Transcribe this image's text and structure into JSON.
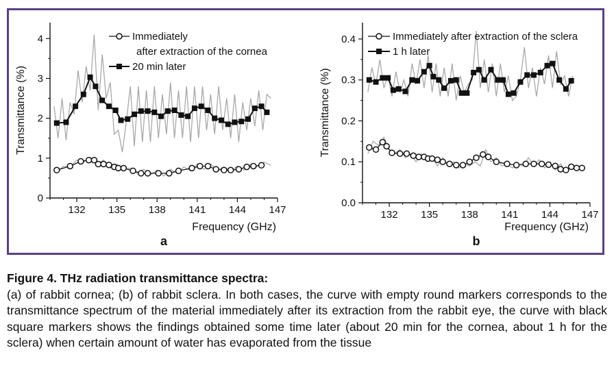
{
  "chart_data": [
    {
      "type": "line",
      "panel_label": "a",
      "xlabel": "Frequency (GHz)",
      "ylabel": "Transmittance (%)",
      "xlim": [
        130,
        147
      ],
      "ylim": [
        0,
        4.4
      ],
      "xticks": [
        132,
        135,
        138,
        141,
        144,
        147
      ],
      "yticks": [
        0,
        1,
        2,
        3,
        4
      ],
      "grid": false,
      "legend_position": "top-right",
      "colors": {
        "axis": "#111111",
        "raw": "#a8a8a8",
        "series": "#111111",
        "frame": "#5b3f86"
      },
      "series": [
        {
          "name": "Immediately\nafter extraction of the cornea",
          "marker": "open-circle",
          "x": [
            130.5,
            131.5,
            132.3,
            132.9,
            133.3,
            133.6,
            134.0,
            134.4,
            134.8,
            135.1,
            135.5,
            136.2,
            136.8,
            137.3,
            138.1,
            138.9,
            139.6,
            140.6,
            141.2,
            141.8,
            142.4,
            143.0,
            143.5,
            144.1,
            144.7,
            145.2,
            145.8
          ],
          "y": [
            0.7,
            0.8,
            0.92,
            0.95,
            0.95,
            0.85,
            0.85,
            0.83,
            0.78,
            0.75,
            0.75,
            0.68,
            0.62,
            0.62,
            0.62,
            0.62,
            0.68,
            0.75,
            0.8,
            0.8,
            0.72,
            0.7,
            0.7,
            0.72,
            0.78,
            0.8,
            0.82
          ]
        },
        {
          "name": "20 min later",
          "marker": "filled-square",
          "x": [
            130.5,
            131.2,
            131.9,
            132.5,
            133.0,
            133.4,
            133.9,
            134.4,
            134.9,
            135.3,
            135.8,
            136.3,
            136.8,
            137.3,
            137.8,
            138.3,
            138.8,
            139.3,
            139.8,
            140.3,
            140.8,
            141.3,
            141.8,
            142.3,
            142.8,
            143.3,
            143.8,
            144.3,
            144.8,
            145.3,
            145.8,
            146.2
          ],
          "y": [
            1.88,
            1.9,
            2.3,
            2.6,
            3.03,
            2.8,
            2.45,
            2.3,
            2.2,
            1.95,
            1.98,
            2.1,
            2.18,
            2.18,
            2.15,
            2.05,
            2.18,
            2.2,
            2.08,
            2.05,
            2.25,
            2.3,
            2.2,
            2.0,
            1.95,
            1.85,
            1.9,
            1.92,
            1.98,
            2.25,
            2.3,
            2.15
          ]
        },
        {
          "name": "",
          "style": "raw-trace",
          "x": [
            130.3,
            130.6,
            130.9,
            131.2,
            131.5,
            131.8,
            132.1,
            132.4,
            132.7,
            133.0,
            133.3,
            133.6,
            133.9,
            134.2,
            134.5,
            134.8,
            135.1,
            135.4,
            135.7,
            136.0,
            136.3,
            136.6,
            136.9,
            137.2,
            137.5,
            137.8,
            138.1,
            138.4,
            138.7,
            139.0,
            139.3,
            139.6,
            139.9,
            140.2,
            140.5,
            140.8,
            141.1,
            141.4,
            141.7,
            142.0,
            142.3,
            142.6,
            142.9,
            143.2,
            143.5,
            143.8,
            144.1,
            144.4,
            144.7,
            145.0,
            145.3,
            145.6,
            145.9,
            146.2,
            146.5
          ],
          "y": [
            2.3,
            1.5,
            2.5,
            1.45,
            2.4,
            2.1,
            3.2,
            2.4,
            3.3,
            2.7,
            4.1,
            2.2,
            3.6,
            2.5,
            2.9,
            1.6,
            1.7,
            1.15,
            1.9,
            2.8,
            1.3,
            2.8,
            1.4,
            2.7,
            1.4,
            2.8,
            1.5,
            2.6,
            1.6,
            2.9,
            1.5,
            2.7,
            1.5,
            2.8,
            1.4,
            2.8,
            1.5,
            2.8,
            1.7,
            2.6,
            1.6,
            2.8,
            1.7,
            2.5,
            1.5,
            2.6,
            1.4,
            2.4,
            1.7,
            2.5,
            1.8,
            2.7,
            1.7,
            2.6,
            2.5
          ]
        },
        {
          "name": "",
          "style": "raw-trace",
          "x": [
            130.5,
            131.0,
            131.5,
            132.0,
            132.5,
            133.0,
            133.5,
            134.0,
            134.5,
            135.0,
            135.5,
            136.0,
            136.5,
            137.0,
            137.5,
            138.0,
            138.5,
            139.0,
            139.5,
            140.0,
            140.5,
            141.0,
            141.5,
            142.0,
            142.5,
            143.0,
            143.5,
            144.0,
            144.5,
            145.0,
            145.5,
            146.0,
            146.5
          ],
          "y": [
            0.62,
            0.8,
            0.78,
            0.95,
            0.9,
            1.02,
            0.85,
            0.95,
            0.75,
            0.85,
            0.7,
            0.75,
            0.62,
            0.72,
            0.58,
            0.7,
            0.55,
            0.72,
            0.62,
            0.78,
            0.68,
            0.85,
            0.72,
            0.85,
            0.7,
            0.78,
            0.68,
            0.8,
            0.7,
            0.85,
            0.8,
            0.9,
            0.82
          ]
        }
      ]
    },
    {
      "type": "line",
      "panel_label": "b",
      "xlabel": "Frequency (GHz)",
      "ylabel": "Transmittance (%)",
      "xlim": [
        130,
        147
      ],
      "ylim": [
        0,
        0.44
      ],
      "xticks": [
        132,
        135,
        138,
        141,
        144,
        147
      ],
      "yticks": [
        0.0,
        0.1,
        0.2,
        0.3,
        0.4
      ],
      "grid": false,
      "legend_position": "top-left",
      "colors": {
        "axis": "#111111",
        "raw": "#a8a8a8",
        "series": "#111111",
        "frame": "#5b3f86"
      },
      "series": [
        {
          "name": "Immediately after extraction of the sclera",
          "marker": "open-circle",
          "x": [
            130.5,
            131.0,
            131.5,
            131.8,
            132.2,
            132.8,
            133.3,
            133.8,
            134.2,
            134.6,
            134.9,
            135.2,
            135.6,
            136.0,
            136.5,
            137.0,
            137.5,
            138.0,
            138.5,
            139.0,
            139.4,
            140.0,
            140.8,
            141.5,
            142.2,
            142.8,
            143.4,
            143.9,
            144.4,
            144.8,
            145.2,
            145.6,
            146.0,
            146.4
          ],
          "y": [
            0.135,
            0.13,
            0.148,
            0.138,
            0.122,
            0.12,
            0.12,
            0.115,
            0.112,
            0.112,
            0.108,
            0.108,
            0.105,
            0.1,
            0.095,
            0.092,
            0.092,
            0.1,
            0.11,
            0.118,
            0.112,
            0.1,
            0.095,
            0.092,
            0.095,
            0.095,
            0.095,
            0.093,
            0.09,
            0.082,
            0.08,
            0.088,
            0.085,
            0.085
          ]
        },
        {
          "name": "1 h later",
          "marker": "filled-square",
          "x": [
            130.5,
            131.0,
            131.5,
            131.9,
            132.3,
            132.7,
            133.2,
            133.7,
            134.1,
            134.6,
            135.0,
            135.3,
            135.7,
            136.1,
            136.6,
            137.0,
            137.4,
            137.8,
            138.3,
            138.7,
            139.1,
            139.6,
            140.1,
            140.5,
            140.9,
            141.3,
            141.8,
            142.3,
            142.8,
            143.3,
            143.8,
            144.2,
            144.7,
            145.2,
            145.6
          ],
          "y": [
            0.3,
            0.295,
            0.305,
            0.305,
            0.275,
            0.278,
            0.272,
            0.3,
            0.298,
            0.32,
            0.335,
            0.308,
            0.3,
            0.28,
            0.298,
            0.3,
            0.268,
            0.268,
            0.318,
            0.325,
            0.3,
            0.325,
            0.3,
            0.3,
            0.265,
            0.268,
            0.295,
            0.312,
            0.312,
            0.318,
            0.335,
            0.34,
            0.3,
            0.278,
            0.298
          ]
        },
        {
          "name": "",
          "style": "raw-trace",
          "x": [
            130.4,
            130.7,
            131.0,
            131.3,
            131.6,
            131.9,
            132.2,
            132.5,
            132.8,
            133.1,
            133.4,
            133.7,
            134.0,
            134.3,
            134.6,
            134.9,
            135.2,
            135.5,
            135.8,
            136.1,
            136.4,
            136.7,
            137.0,
            137.3,
            137.6,
            137.9,
            138.2,
            138.5,
            138.8,
            139.1,
            139.4,
            139.7,
            140.0,
            140.3,
            140.6,
            140.9,
            141.2,
            141.5,
            141.8,
            142.1,
            142.4,
            142.7,
            143.0,
            143.3,
            143.6,
            143.9,
            144.2,
            144.5,
            144.8,
            145.1,
            145.4,
            145.7
          ],
          "y": [
            0.27,
            0.33,
            0.29,
            0.35,
            0.28,
            0.31,
            0.26,
            0.32,
            0.27,
            0.3,
            0.26,
            0.34,
            0.29,
            0.35,
            0.28,
            0.36,
            0.27,
            0.34,
            0.26,
            0.33,
            0.26,
            0.34,
            0.25,
            0.31,
            0.27,
            0.29,
            0.3,
            0.42,
            0.28,
            0.35,
            0.27,
            0.34,
            0.26,
            0.34,
            0.27,
            0.31,
            0.25,
            0.26,
            0.3,
            0.38,
            0.28,
            0.33,
            0.26,
            0.33,
            0.29,
            0.36,
            0.28,
            0.37,
            0.29,
            0.31,
            0.26,
            0.31
          ]
        },
        {
          "name": "",
          "style": "raw-trace",
          "x": [
            130.4,
            130.8,
            131.2,
            131.6,
            132.0,
            132.4,
            132.8,
            133.2,
            133.6,
            134.0,
            134.4,
            134.8,
            135.2,
            135.6,
            136.0,
            136.4,
            136.8,
            137.2,
            137.6,
            138.0,
            138.4,
            138.8,
            139.2,
            139.6,
            140.0,
            140.4,
            140.8,
            141.2,
            141.6,
            142.0,
            142.4,
            142.8,
            143.2,
            143.6,
            144.0,
            144.4,
            144.8,
            145.2,
            145.6,
            146.0,
            146.4
          ],
          "y": [
            0.12,
            0.15,
            0.14,
            0.16,
            0.13,
            0.12,
            0.13,
            0.11,
            0.12,
            0.1,
            0.12,
            0.1,
            0.11,
            0.09,
            0.11,
            0.09,
            0.1,
            0.085,
            0.095,
            0.09,
            0.1,
            0.09,
            0.13,
            0.1,
            0.11,
            0.09,
            0.095,
            0.085,
            0.095,
            0.09,
            0.11,
            0.09,
            0.105,
            0.085,
            0.1,
            0.08,
            0.095,
            0.075,
            0.09,
            0.08,
            0.09
          ]
        }
      ]
    }
  ],
  "caption": {
    "title": "Figure 4. THz radiation transmittance spectra:",
    "body": "(a) of rabbit cornea; (b) of rabbit sclera. In both cases, the curve with empty round markers corresponds to the transmittance spectrum of the material immediately after its extraction from the rabbit eye, the curve with black square markers shows the findings obtained some time later (about 20 min for the cornea, about 1 h for the sclera) when certain amount of water has evaporated from the tissue"
  }
}
